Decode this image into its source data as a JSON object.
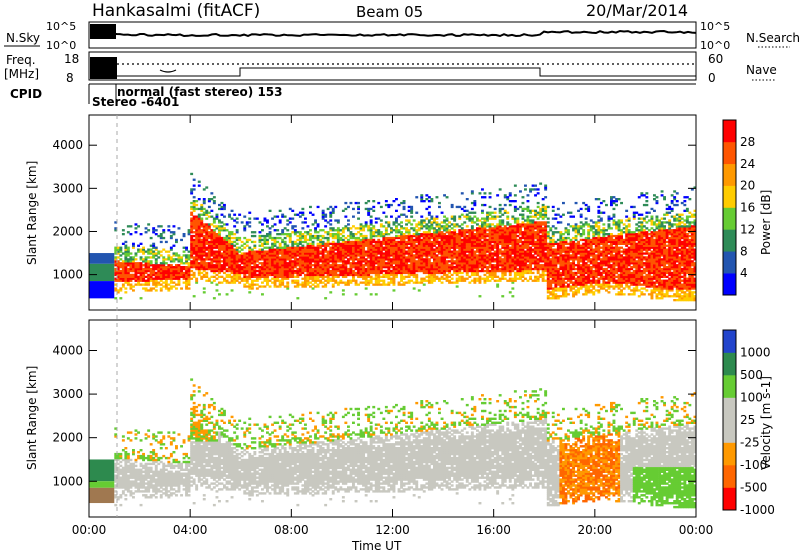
{
  "header": {
    "site": "Hankasalmi (fitACF)",
    "beam": "Beam 05",
    "date": "20/Mar/2014"
  },
  "summary": {
    "nsky_label": "N.Sky",
    "nsearch_label": "N.Search",
    "freq_label": "Freq.",
    "freq_unit": "[MHz]",
    "nave_label": "Nave",
    "cpid_label": "CPID",
    "nsky_ticks": [
      "10^5",
      "10^0"
    ],
    "freq_ticks": [
      "18",
      "8"
    ],
    "nave_ticks": [
      "60",
      "0"
    ],
    "mode_text": "normal (fast stereo) 153",
    "stereo_text": "Stereo -6401"
  },
  "colors": {
    "power_scale": [
      "#0000ff",
      "#2255b0",
      "#2e8b57",
      "#66cc33",
      "#ffcc00",
      "#ff9900",
      "#ff5500",
      "#ff0000"
    ],
    "velocity_scale": [
      "#2244cc",
      "#2d8a4e",
      "#66cc33",
      "#c8c8c0",
      "#c8c8c0",
      "#ff9900",
      "#ff6600",
      "#ff0000"
    ]
  },
  "chart_data": [
    {
      "type": "heatmap",
      "title": "",
      "ylabel": "Slant Range [km]",
      "xlabel": "",
      "colorbar_label": "Power [dB]",
      "colorbar_ticks": [
        "4",
        "8",
        "12",
        "16",
        "20",
        "24",
        "28"
      ],
      "yticks": [
        "1000",
        "2000",
        "3000",
        "4000"
      ],
      "ylim": [
        180,
        4700
      ],
      "xlim_hours": [
        0,
        24
      ],
      "description_bands": [
        {
          "t0": 1.0,
          "t1": 4.0,
          "r0": 800,
          "r1": 1300,
          "level": 28
        },
        {
          "t0": 4.0,
          "t1": 6.0,
          "r0": 1100,
          "r1": 2500,
          "level": 28
        },
        {
          "t0": 6.0,
          "t1": 18.0,
          "r0": 900,
          "r1": 1800,
          "level": 24
        },
        {
          "t0": 18.0,
          "t1": 24.0,
          "r0": 700,
          "r1": 2200,
          "level": 28
        }
      ]
    },
    {
      "type": "heatmap",
      "title": "",
      "ylabel": "Slant Range [km]",
      "xlabel": "Time UT",
      "colorbar_label": "Velocity [m s-1]",
      "colorbar_ticks": [
        "1000",
        "500",
        "100",
        "25",
        "-25",
        "-100",
        "-500",
        "-1000"
      ],
      "yticks": [
        "1000",
        "2000",
        "3000",
        "4000"
      ],
      "xticks": [
        "00:00",
        "04:00",
        "08:00",
        "12:00",
        "16:00",
        "20:00",
        "00:00"
      ],
      "ylim": [
        180,
        4700
      ],
      "xlim_hours": [
        0,
        24
      ]
    }
  ]
}
